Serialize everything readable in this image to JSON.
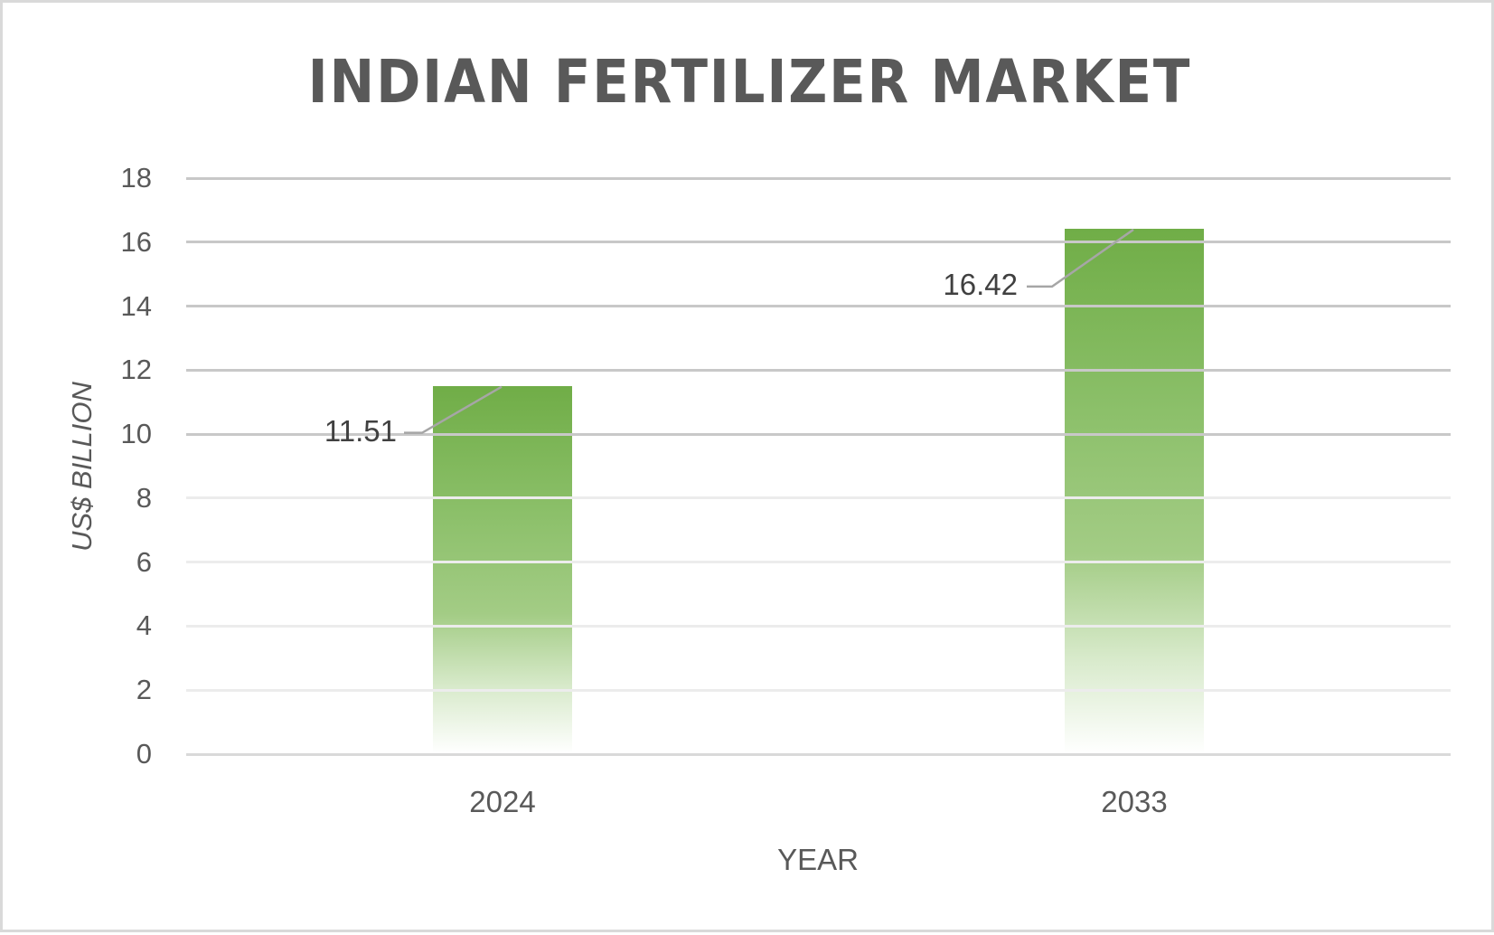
{
  "chart_data": {
    "type": "bar",
    "title": "INDIAN FERTILIZER MARKET",
    "xlabel": "YEAR",
    "ylabel": "US$ BILLION",
    "categories": [
      "2024",
      "2033"
    ],
    "values": [
      11.51,
      16.42
    ],
    "data_labels": [
      "11.51",
      "16.42"
    ],
    "ylim": [
      0,
      18
    ],
    "yticks": [
      "0",
      "2",
      "4",
      "6",
      "8",
      "10",
      "12",
      "14",
      "16",
      "18"
    ],
    "grid": true,
    "legend": null,
    "colors": {
      "bar_top": "#70ad47",
      "bar_bottom": "#ffffff",
      "gridline": "#c8c8c8",
      "text": "#595959",
      "border": "#d9d9d9"
    }
  }
}
